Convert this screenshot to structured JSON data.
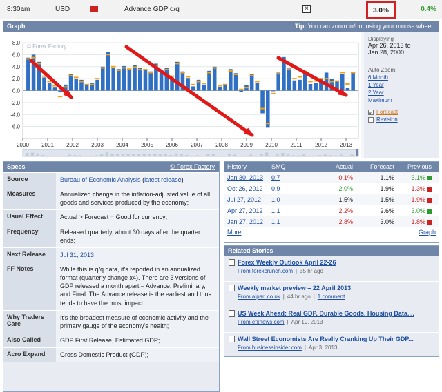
{
  "top_row": {
    "time": "8:30am",
    "currency": "USD",
    "impact_icon": "high-impact-folder-icon",
    "event": "Advance GDP q/q",
    "detail_toggle": "×",
    "actual": "3.0%",
    "previous": "0.4%"
  },
  "graph": {
    "header": "Graph",
    "tip_label": "Tip:",
    "tip_text": "You can zoom in/out using your mouse wheel.",
    "watermark": "© Forex Factory",
    "displaying_label": "Displaying",
    "range_from": "Apr 26, 2013 to",
    "range_to": "Jan 28, 2000",
    "auto_zoom_label": "Auto Zoom:",
    "zoom_links": [
      "6 Month",
      "1 Year",
      "2 Year",
      "Maximum"
    ],
    "forecast_label": "Forecast",
    "forecast_checked": true,
    "revision_label": "Revision",
    "revision_checked": false
  },
  "chart_data": {
    "type": "bar",
    "title": "",
    "ylim": [
      -8,
      8
    ],
    "yticks": [
      "8.0",
      "6.0",
      "4.0",
      "2.0",
      "0.0",
      "-2.0",
      "-4.0",
      "-6.0"
    ],
    "xticks": [
      "2000",
      "2001",
      "2002",
      "2003",
      "2004",
      "2005",
      "2006",
      "2007",
      "2008",
      "2009",
      "2010",
      "2011",
      "2012",
      "2013"
    ],
    "series": [
      {
        "name": "Actual",
        "values": [
          5.5,
          6.0,
          4.8,
          2.2,
          1.2,
          0.5,
          -0.3,
          1.0,
          2.8,
          2.0,
          1.8,
          0.9,
          1.3,
          1.8,
          4.0,
          6.5,
          3.8,
          3.6,
          4.1,
          3.4,
          4.2,
          3.8,
          3.4,
          3.2,
          4.5,
          3.0,
          3.8,
          2.2,
          4.8,
          3.2,
          2.1,
          0.7,
          1.8,
          1.0,
          3.3,
          4.0,
          0.6,
          1.1,
          3.6,
          2.9,
          -0.2,
          0.9,
          2.8,
          1.3,
          -3.8,
          -6.2,
          0.0,
          3.0,
          5.6,
          3.7,
          1.7,
          1.8,
          3.0,
          1.1,
          1.3,
          2.0,
          3.0,
          2.0,
          1.5,
          2.8,
          0.4,
          3.0
        ]
      },
      {
        "name": "Forecast",
        "values": [
          5.3,
          5.5,
          4.5,
          2.4,
          1.5,
          0.8,
          -1.0,
          0.6,
          2.5,
          2.2,
          1.5,
          1.0,
          1.0,
          2.0,
          3.8,
          6.0,
          4.0,
          3.4,
          3.8,
          3.6,
          3.9,
          3.5,
          3.5,
          3.0,
          4.2,
          3.2,
          3.5,
          2.4,
          4.5,
          3.0,
          2.3,
          1.0,
          1.5,
          1.2,
          3.0,
          3.8,
          0.8,
          1.0,
          3.3,
          2.7,
          0.2,
          0.5,
          2.5,
          1.5,
          -3.0,
          -5.5,
          -0.5,
          2.8,
          5.0,
          3.5,
          2.0,
          2.3,
          3.2,
          1.5,
          1.6,
          2.0,
          2.0,
          1.5,
          1.6,
          3.0,
          1.1,
          3.0
        ]
      }
    ],
    "colors": {
      "actual": "#2f6fc4",
      "forecast": "#f0a21b",
      "arrow": "#e01818"
    }
  },
  "specs": {
    "header": "Specs",
    "source_link": "© Forex Factory",
    "rows": [
      {
        "key": "Source",
        "parts": [
          [
            "link",
            "Bureau of Economic Analysis"
          ],
          [
            "text",
            " ("
          ],
          [
            "link",
            "latest release"
          ],
          [
            "text",
            ")"
          ]
        ]
      },
      {
        "key": "Measures",
        "parts": [
          [
            "text",
            "Annualized change in the inflation-adjusted value of all goods and services produced by the economy;"
          ]
        ]
      },
      {
        "key": "Usual Effect",
        "parts": [
          [
            "text",
            "Actual > Forecast = Good for currency;"
          ]
        ]
      },
      {
        "key": "Frequency",
        "parts": [
          [
            "text",
            "Released quarterly, about 30 days after the quarter ends;"
          ]
        ]
      },
      {
        "key": "Next Release",
        "parts": [
          [
            "link",
            "Jul 31, 2013"
          ]
        ]
      },
      {
        "key": "FF Notes",
        "parts": [
          [
            "text",
            "While this is q/q data, it's reported in an annualized format (quarterly change x4). There are 3 versions of GDP released a month apart – Advance, Preliminary, and Final. The Advance release is the earliest and thus tends to have the most impact;"
          ]
        ]
      },
      {
        "key": "Why Traders Care",
        "parts": [
          [
            "text",
            "It's the broadest measure of economic activity and the primary gauge of the economy's health;"
          ]
        ]
      },
      {
        "key": "Also Called",
        "parts": [
          [
            "text",
            "GDP First Release, Estimated GDP;"
          ]
        ]
      },
      {
        "key": "Acro Expand",
        "parts": [
          [
            "text",
            "Gross Domestic Product (GDP);"
          ]
        ]
      }
    ]
  },
  "history": {
    "headers": {
      "date": "History",
      "smq": "SMQ",
      "actual": "Actual",
      "forecast": "Forecast",
      "previous": "Previous"
    },
    "rows": [
      {
        "date": "Jan 30, 2013",
        "smq": "0.7",
        "actual": "-0.1%",
        "actual_cls": "neg",
        "forecast": "1.1%",
        "previous": "3.1%",
        "prev_cls": "pos",
        "flag": "g"
      },
      {
        "date": "Oct 26, 2012",
        "smq": "0.9",
        "actual": "2.0%",
        "actual_cls": "pos",
        "forecast": "1.9%",
        "previous": "1.3%",
        "prev_cls": "neg",
        "flag": "r"
      },
      {
        "date": "Jul 27, 2012",
        "smq": "1.0",
        "actual": "1.5%",
        "actual_cls": "",
        "forecast": "1.5%",
        "previous": "1.9%",
        "prev_cls": "neg",
        "flag": "r"
      },
      {
        "date": "Apr 27, 2012",
        "smq": "1.1",
        "actual": "2.2%",
        "actual_cls": "neg",
        "forecast": "2.6%",
        "previous": "3.0%",
        "prev_cls": "pos",
        "flag": "g"
      },
      {
        "date": "Jan 27, 2012",
        "smq": "1.1",
        "actual": "2.8%",
        "actual_cls": "neg",
        "forecast": "3.0%",
        "previous": "1.8%",
        "prev_cls": "neg",
        "flag": "r"
      }
    ],
    "more": "More",
    "graph_link": "Graph"
  },
  "related": {
    "header": "Related Stories",
    "stories": [
      {
        "title": "Forex Weekly Outlook April 22-26",
        "source": "From forexcrunch.com",
        "time": "35 hr ago",
        "comments": ""
      },
      {
        "title": "Weekly market preview – 22 April 2013",
        "source": "From alpari.co.uk",
        "time": "44 hr ago",
        "comments": "1 comment"
      },
      {
        "title": "US Week Ahead: Real GDP, Durable Goods, Housing Data,...",
        "source": "From efxnews.com",
        "time": "Apr 19, 2013",
        "comments": ""
      },
      {
        "title": "Wall Street Economists Are Really Cranking Up Their GDP...",
        "source": "From businessinsider.com",
        "time": "Apr 3, 2013",
        "comments": ""
      }
    ]
  }
}
